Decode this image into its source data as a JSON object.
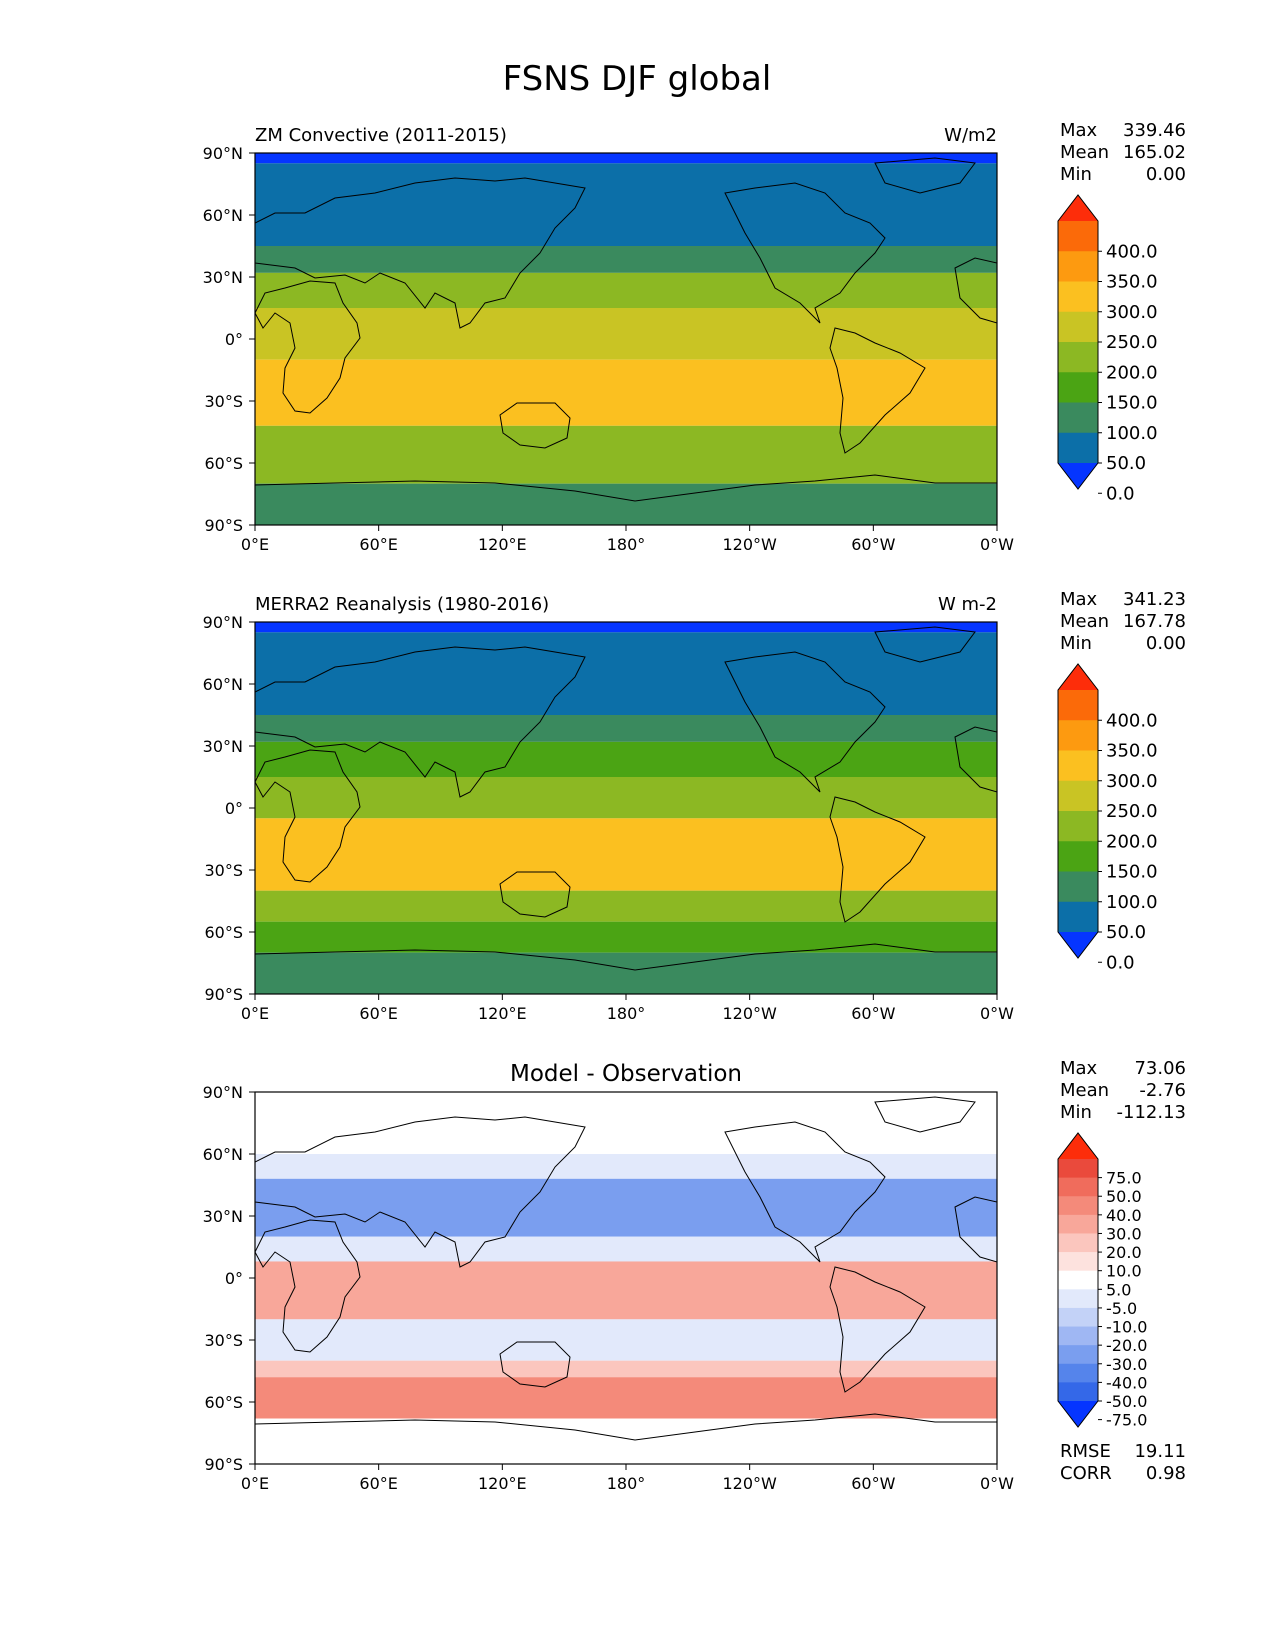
{
  "figure": {
    "title": "FSNS DJF global"
  },
  "axes": {
    "lat_ticks": [
      "90°N",
      "60°N",
      "30°N",
      "0°",
      "30°S",
      "60°S",
      "90°S"
    ],
    "lon_ticks": [
      "0°E",
      "60°E",
      "120°E",
      "180°",
      "120°W",
      "60°W",
      "0°W"
    ]
  },
  "colors": {
    "abs": [
      "#0535ff",
      "#0c6fa8",
      "#3a8a5e",
      "#4ba414",
      "#8cb823",
      "#c9c424",
      "#fbc020",
      "#fd9a10",
      "#fb6a09",
      "#fd2d0a"
    ],
    "diff": [
      "#0535ff",
      "#3468e8",
      "#5584eb",
      "#7a9eef",
      "#9fb7f3",
      "#c3d2f7",
      "#e2e9fb",
      "#ffffff",
      "#fde2de",
      "#fbc6be",
      "#f8a79a",
      "#f48a7a",
      "#f06c5c",
      "#ea4a3c",
      "#fd2d0a"
    ]
  },
  "chart_data": [
    {
      "type": "heatmap",
      "title": "ZM Convective (2011-2015)",
      "units": "W/m2",
      "stats": {
        "max_label": "Max",
        "max": "339.46",
        "mean_label": "Mean",
        "mean": "165.02",
        "min_label": "Min",
        "min": "0.00"
      },
      "colorbar": [
        "400.0",
        "350.0",
        "300.0",
        "250.0",
        "200.0",
        "150.0",
        "100.0",
        "50.0",
        "0.0"
      ],
      "xlim": [
        0,
        360
      ],
      "ylim": [
        -90,
        90
      ],
      "zonal_bands": [
        {
          "lat": [
            85,
            90
          ],
          "level": 0
        },
        {
          "lat": [
            45,
            85
          ],
          "level": 1
        },
        {
          "lat": [
            32,
            45
          ],
          "level": 2
        },
        {
          "lat": [
            15,
            32
          ],
          "level": 4
        },
        {
          "lat": [
            -10,
            15
          ],
          "level": 5
        },
        {
          "lat": [
            -42,
            -10
          ],
          "level": 6
        },
        {
          "lat": [
            -70,
            -42
          ],
          "level": 4
        },
        {
          "lat": [
            -90,
            -70
          ],
          "level": 2
        }
      ]
    },
    {
      "type": "heatmap",
      "title": "MERRA2 Reanalysis (1980-2016)",
      "units": "W m-2",
      "stats": {
        "max_label": "Max",
        "max": "341.23",
        "mean_label": "Mean",
        "mean": "167.78",
        "min_label": "Min",
        "min": "0.00"
      },
      "colorbar": [
        "400.0",
        "350.0",
        "300.0",
        "250.0",
        "200.0",
        "150.0",
        "100.0",
        "50.0",
        "0.0"
      ],
      "xlim": [
        0,
        360
      ],
      "ylim": [
        -90,
        90
      ],
      "zonal_bands": [
        {
          "lat": [
            85,
            90
          ],
          "level": 0
        },
        {
          "lat": [
            45,
            85
          ],
          "level": 1
        },
        {
          "lat": [
            32,
            45
          ],
          "level": 2
        },
        {
          "lat": [
            15,
            32
          ],
          "level": 3
        },
        {
          "lat": [
            -5,
            15
          ],
          "level": 4
        },
        {
          "lat": [
            -40,
            -5
          ],
          "level": 6
        },
        {
          "lat": [
            -55,
            -40
          ],
          "level": 4
        },
        {
          "lat": [
            -70,
            -55
          ],
          "level": 3
        },
        {
          "lat": [
            -90,
            -70
          ],
          "level": 2
        }
      ]
    },
    {
      "type": "heatmap",
      "title": "Model - Observation",
      "stats": {
        "max_label": "Max",
        "max": "73.06",
        "mean_label": "Mean",
        "mean": "-2.76",
        "min_label": "Min",
        "min": "-112.13"
      },
      "colorbar": [
        "75.0",
        "50.0",
        "40.0",
        "30.0",
        "20.0",
        "10.0",
        "5.0",
        "-5.0",
        "-10.0",
        "-20.0",
        "-30.0",
        "-40.0",
        "-50.0",
        "-75.0"
      ],
      "metrics": {
        "rmse_label": "RMSE",
        "rmse": "19.11",
        "corr_label": "CORR",
        "corr": "0.98"
      },
      "xlim": [
        0,
        360
      ],
      "ylim": [
        -90,
        90
      ],
      "zonal_bands": [
        {
          "lat": [
            60,
            90
          ],
          "level": 7
        },
        {
          "lat": [
            48,
            60
          ],
          "level": 6
        },
        {
          "lat": [
            20,
            48
          ],
          "level": 3
        },
        {
          "lat": [
            8,
            20
          ],
          "level": 6
        },
        {
          "lat": [
            -20,
            8
          ],
          "level": 10
        },
        {
          "lat": [
            -40,
            -20
          ],
          "level": 6
        },
        {
          "lat": [
            -48,
            -40
          ],
          "level": 9
        },
        {
          "lat": [
            -68,
            -48
          ],
          "level": 11
        },
        {
          "lat": [
            -90,
            -68
          ],
          "level": 7
        }
      ]
    }
  ]
}
